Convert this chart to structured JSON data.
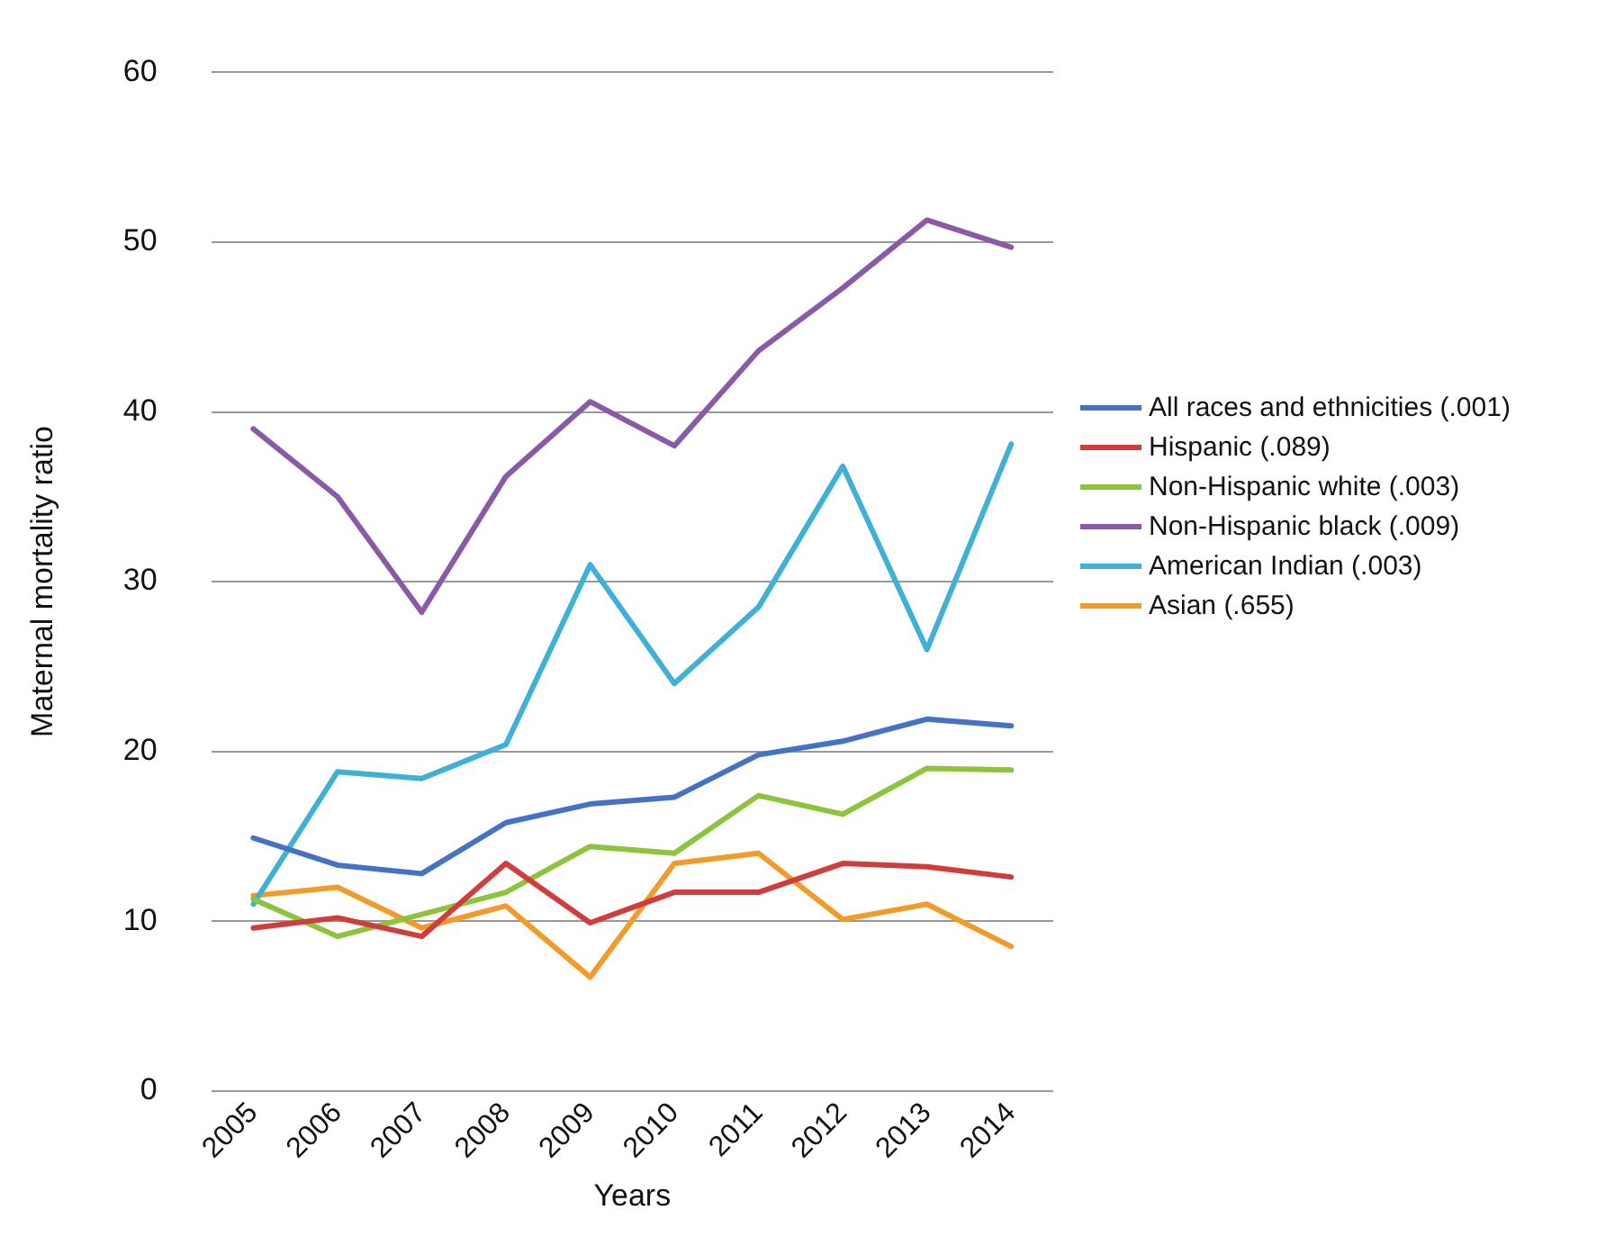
{
  "chart_data": {
    "type": "line",
    "xlabel": "Years",
    "ylabel": "Maternal mortality ratio",
    "categories": [
      "2005",
      "2006",
      "2007",
      "2008",
      "2009",
      "2010",
      "2011",
      "2012",
      "2013",
      "2014"
    ],
    "series": [
      {
        "name": "All races and ethnicities (.001)",
        "color": "#4472c4",
        "values": [
          14.9,
          13.3,
          12.8,
          15.8,
          16.9,
          17.3,
          19.8,
          20.6,
          21.9,
          21.5
        ]
      },
      {
        "name": "Hispanic (.089)",
        "color": "#d13d3d",
        "values": [
          9.6,
          10.2,
          9.1,
          13.4,
          9.9,
          11.7,
          11.7,
          13.4,
          13.2,
          12.6
        ]
      },
      {
        "name": "Non-Hispanic white (.003)",
        "color": "#8cc43c",
        "values": [
          11.3,
          9.1,
          10.4,
          11.7,
          14.4,
          14.0,
          17.4,
          16.3,
          19.0,
          18.9
        ]
      },
      {
        "name": "Non-Hispanic black (.009)",
        "color": "#8a5aa8",
        "values": [
          39.0,
          35.0,
          28.2,
          36.2,
          40.6,
          38.0,
          43.6,
          47.3,
          51.3,
          49.7
        ]
      },
      {
        "name": "American Indian (.003)",
        "color": "#3fb1d6",
        "values": [
          11.0,
          18.8,
          18.4,
          20.4,
          31.0,
          24.0,
          28.5,
          36.8,
          26.0,
          38.1
        ]
      },
      {
        "name": "Asian (.655)",
        "color": "#f39b2a",
        "values": [
          11.5,
          12.0,
          9.6,
          10.9,
          6.7,
          13.4,
          14.0,
          10.1,
          11.0,
          8.5
        ]
      }
    ],
    "ylim": [
      0,
      60
    ],
    "yticks": [
      0,
      10,
      20,
      30,
      40,
      50,
      60
    ],
    "grid": "y",
    "legend": "right",
    "marker": "none",
    "line_style": "solid"
  }
}
